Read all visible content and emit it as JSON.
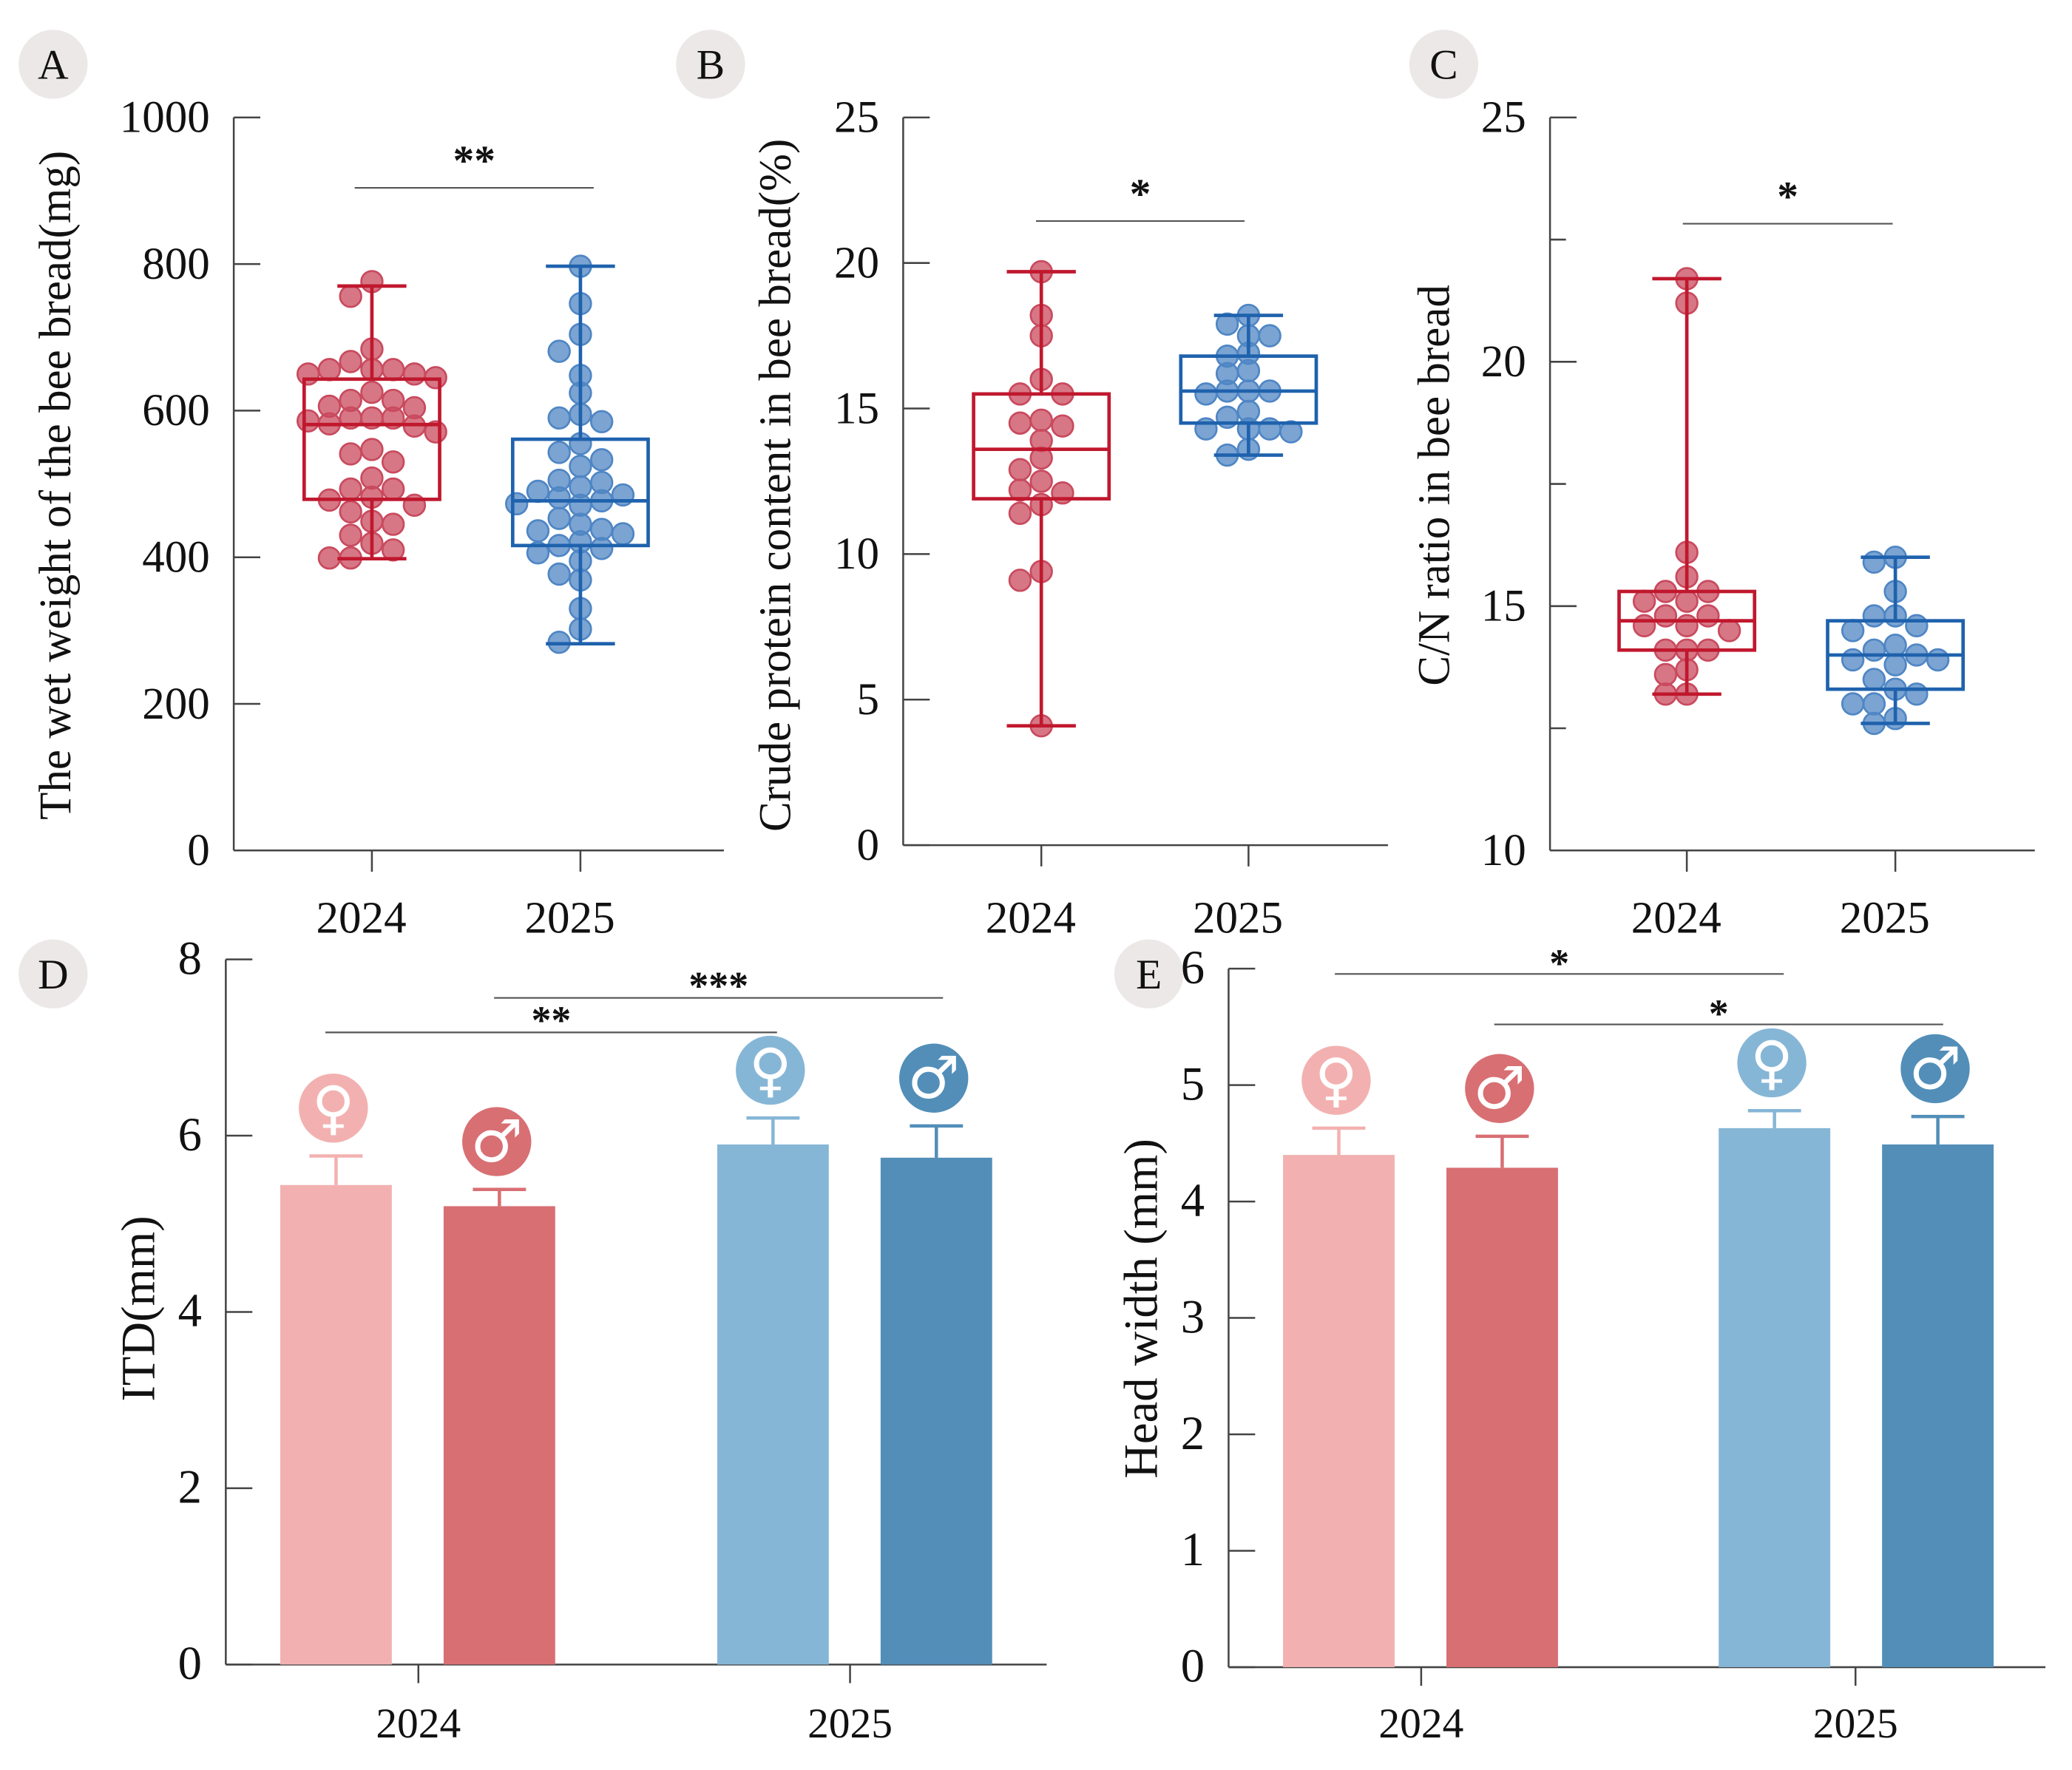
{
  "chart_data": [
    {
      "type": "box",
      "panel": "A",
      "ylabel": "The wet weight of the bee bread(mg)",
      "ylim": [
        0,
        1000
      ],
      "yticks": [
        "0",
        "200",
        "400",
        "600",
        "800",
        "1000"
      ],
      "categories": [
        "2024",
        "2025"
      ],
      "significance": "**",
      "colors": {
        "2024": "#c0182e",
        "2025": "#1f62ad"
      },
      "groups": [
        {
          "name": "2024",
          "whisker_high": 770,
          "q3": 643,
          "median": 581,
          "q1": 479,
          "whisker_low": 398,
          "points": [
            776,
            756,
            684,
            667,
            656,
            656,
            656,
            650,
            645,
            650,
            625,
            614,
            614,
            606,
            604,
            590,
            590,
            590,
            586,
            582,
            579,
            571,
            547,
            541,
            530,
            508,
            493,
            493,
            482,
            478,
            471,
            462,
            449,
            445,
            430,
            419,
            410,
            399,
            399
          ]
        },
        {
          "name": "2025",
          "whisker_high": 797,
          "q3": 561,
          "median": 477,
          "q1": 416,
          "whisker_low": 282,
          "points": [
            797,
            746,
            704,
            681,
            648,
            624,
            595,
            590,
            585,
            555,
            543,
            533,
            524,
            505,
            502,
            496,
            490,
            485,
            481,
            477,
            473,
            471,
            453,
            445,
            438,
            436,
            432,
            421,
            416,
            412,
            406,
            395,
            377,
            369,
            330,
            302,
            284
          ]
        }
      ]
    },
    {
      "type": "box",
      "panel": "B",
      "ylabel": "Crude protein content in bee bread(%)",
      "ylim": [
        0,
        25
      ],
      "yticks": [
        "0",
        "5",
        "10",
        "15",
        "20",
        "25"
      ],
      "categories": [
        "2024",
        "2025"
      ],
      "significance": "*",
      "colors": {
        "2024": "#c0182e",
        "2025": "#1f62ad"
      },
      "groups": [
        {
          "name": "2024",
          "whisker_high": 19.7,
          "q3": 15.5,
          "median": 13.6,
          "q1": 11.9,
          "whisker_low": 4.1,
          "points": [
            19.7,
            18.2,
            17.5,
            16.0,
            15.5,
            15.5,
            14.6,
            14.4,
            14.5,
            13.9,
            13.3,
            12.9,
            12.5,
            12.2,
            12.1,
            11.7,
            11.4,
            9.4,
            9.1,
            4.1
          ]
        },
        {
          "name": "2025",
          "whisker_high": 18.2,
          "q3": 16.8,
          "median": 15.6,
          "q1": 14.5,
          "whisker_low": 13.4,
          "points": [
            18.2,
            17.9,
            17.5,
            17.5,
            16.9,
            16.8,
            16.2,
            16.3,
            15.6,
            15.6,
            15.6,
            15.5,
            14.9,
            14.7,
            14.3,
            14.3,
            14.3,
            14.2,
            13.6,
            13.4
          ]
        }
      ]
    },
    {
      "type": "box",
      "panel": "C",
      "ylabel": "C/N ratio in bee bread",
      "ylim": [
        10,
        25
      ],
      "yticks": [
        "10",
        "15",
        "20",
        "25"
      ],
      "categories": [
        "2024",
        "2025"
      ],
      "significance": "*",
      "colors": {
        "2024": "#c0182e",
        "2025": "#1f62ad"
      },
      "groups": [
        {
          "name": "2024",
          "whisker_high": 21.7,
          "q3": 15.3,
          "median": 14.7,
          "q1": 14.1,
          "whisker_low": 13.2,
          "points": [
            21.7,
            21.2,
            16.1,
            15.6,
            15.3,
            15.1,
            15.3,
            15.1,
            14.8,
            14.8,
            14.6,
            14.5,
            14.6,
            14.1,
            14.1,
            14.1,
            13.6,
            13.7,
            13.2,
            13.2
          ]
        },
        {
          "name": "2025",
          "whisker_high": 16.0,
          "q3": 14.7,
          "median": 14.0,
          "q1": 13.3,
          "whisker_low": 12.6,
          "points": [
            16.0,
            15.9,
            15.3,
            14.8,
            14.8,
            14.6,
            14.5,
            14.2,
            14.1,
            13.8,
            13.9,
            13.9,
            14.0,
            13.5,
            13.3,
            13.2,
            13.0,
            13.0,
            12.6,
            12.7
          ]
        }
      ]
    },
    {
      "type": "bar",
      "panel": "D",
      "ylabel": "ITD(mm)",
      "ylim": [
        0,
        8
      ],
      "yticks": [
        "0",
        "2",
        "4",
        "6",
        "8"
      ],
      "categories": [
        "2024",
        "2025"
      ],
      "series": [
        {
          "name": "2024 female",
          "symbol": "♀",
          "value": 5.44,
          "error": 0.33,
          "color": "#f2b1b0"
        },
        {
          "name": "2024 male",
          "symbol": "♂",
          "value": 5.2,
          "error": 0.19,
          "color": "#d86f73"
        },
        {
          "name": "2025 female",
          "symbol": "♀",
          "value": 5.9,
          "error": 0.3,
          "color": "#86b6d6"
        },
        {
          "name": "2025 male",
          "symbol": "♂",
          "value": 5.75,
          "error": 0.36,
          "color": "#528eb8"
        }
      ],
      "comparisons": [
        {
          "from": "2024 female",
          "to": "2025 female",
          "label": "**"
        },
        {
          "from": "2024 male",
          "to": "2025 male",
          "label": "***"
        }
      ]
    },
    {
      "type": "bar",
      "panel": "E",
      "ylabel": "Head width (mm)",
      "ylim": [
        0,
        6
      ],
      "yticks": [
        "0",
        "1",
        "2",
        "3",
        "4",
        "5",
        "6"
      ],
      "categories": [
        "2024",
        "2025"
      ],
      "series": [
        {
          "name": "2024 female",
          "symbol": "♀",
          "value": 4.4,
          "error": 0.23,
          "color": "#f2b1b0"
        },
        {
          "name": "2024 male",
          "symbol": "♂",
          "value": 4.29,
          "error": 0.27,
          "color": "#d86f73"
        },
        {
          "name": "2025 female",
          "symbol": "♀",
          "value": 4.63,
          "error": 0.15,
          "color": "#86b6d6"
        },
        {
          "name": "2025 male",
          "symbol": "♂",
          "value": 4.49,
          "error": 0.24,
          "color": "#528eb8"
        }
      ],
      "comparisons": [
        {
          "from": "2024 female",
          "to": "2025 female",
          "label": "*"
        },
        {
          "from": "2024 male",
          "to": "2025 male",
          "label": "*"
        }
      ]
    }
  ]
}
